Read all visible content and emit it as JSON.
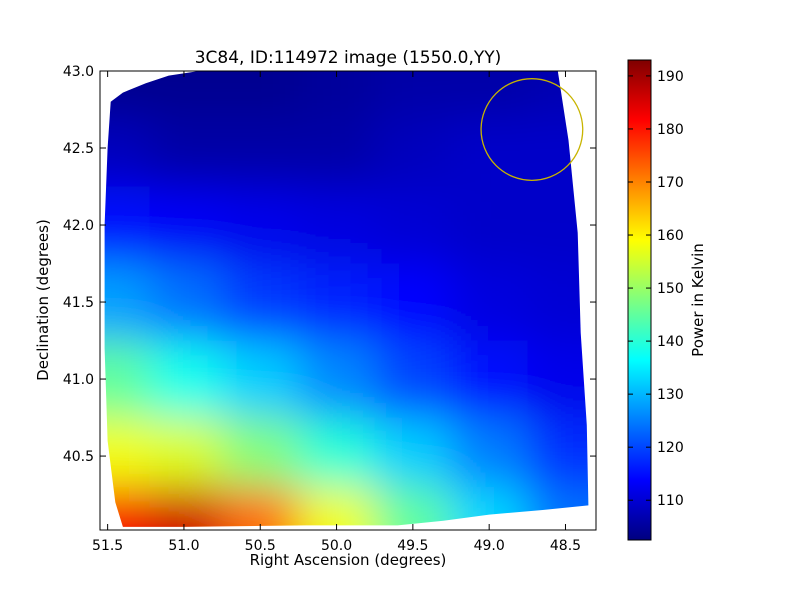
{
  "chart_data": {
    "type": "heatmap",
    "title": "3C84, ID:114972 image (1550.0,YY)",
    "xlabel": "Right Ascension (degrees)",
    "ylabel": "Declination (degrees)",
    "xlim": [
      51.55,
      48.3
    ],
    "ylim": [
      40.02,
      43.0
    ],
    "x_inverted": true,
    "xticks": [
      51.5,
      51.0,
      50.5,
      50.0,
      49.5,
      49.0,
      48.5
    ],
    "xtick_labels": [
      "51.5",
      "51.0",
      "50.5",
      "50.0",
      "49.5",
      "49.0",
      "48.5"
    ],
    "yticks": [
      40.5,
      41.0,
      41.5,
      42.0,
      42.5,
      43.0
    ],
    "ytick_labels": [
      "40.5",
      "41.0",
      "41.5",
      "42.0",
      "42.5",
      "43.0"
    ],
    "colorbar": {
      "label": "Power in Kelvin",
      "range": [
        102.5,
        193.0
      ],
      "ticks": [
        110,
        120,
        130,
        140,
        150,
        160,
        170,
        180,
        190
      ],
      "tick_labels": [
        "110",
        "120",
        "130",
        "140",
        "150",
        "160",
        "170",
        "180",
        "190"
      ],
      "colormap": "jet"
    },
    "colormap_stops": [
      "#00007f",
      "#0000ff",
      "#007fff",
      "#00ffff",
      "#7fff7f",
      "#ffff00",
      "#ff7f00",
      "#ff0000",
      "#7f0000"
    ],
    "circle": {
      "ra": 48.72,
      "dec": 42.62,
      "radius_deg": 0.33,
      "color": "#c8b400"
    },
    "coverage_polygon": [
      [
        51.48,
        42.8
      ],
      [
        51.4,
        42.86
      ],
      [
        51.25,
        42.92
      ],
      [
        51.1,
        42.97
      ],
      [
        50.9,
        43.0
      ],
      [
        48.55,
        43.0
      ],
      [
        48.48,
        42.55
      ],
      [
        48.42,
        41.95
      ],
      [
        48.4,
        41.3
      ],
      [
        48.36,
        40.7
      ],
      [
        48.35,
        40.18
      ],
      [
        48.65,
        40.15
      ],
      [
        49.0,
        40.12
      ],
      [
        49.3,
        40.08
      ],
      [
        49.6,
        40.05
      ],
      [
        50.2,
        40.05
      ],
      [
        51.0,
        40.04
      ],
      [
        51.4,
        40.04
      ],
      [
        51.45,
        40.2
      ],
      [
        51.5,
        40.6
      ],
      [
        51.52,
        41.2
      ],
      [
        51.52,
        42.0
      ],
      [
        51.5,
        42.5
      ]
    ],
    "image_grid": {
      "ra": [
        51.45,
        51.0,
        50.5,
        50.0,
        49.5,
        49.0,
        48.5
      ],
      "dec": [
        42.9,
        42.5,
        42.0,
        41.5,
        41.0,
        40.5,
        40.1
      ],
      "values": [
        [
          104,
          104,
          104,
          105,
          106,
          106,
          107
        ],
        [
          108,
          106,
          106,
          106,
          108,
          109,
          109
        ],
        [
          115,
          113,
          112,
          111,
          110,
          109,
          109
        ],
        [
          128,
          124,
          119,
          117,
          114,
          111,
          110
        ],
        [
          145,
          138,
          132,
          126,
          120,
          115,
          112
        ],
        [
          158,
          156,
          148,
          140,
          132,
          125,
          118
        ],
        [
          182,
          186,
          172,
          158,
          145,
          133,
          124
        ]
      ]
    }
  }
}
